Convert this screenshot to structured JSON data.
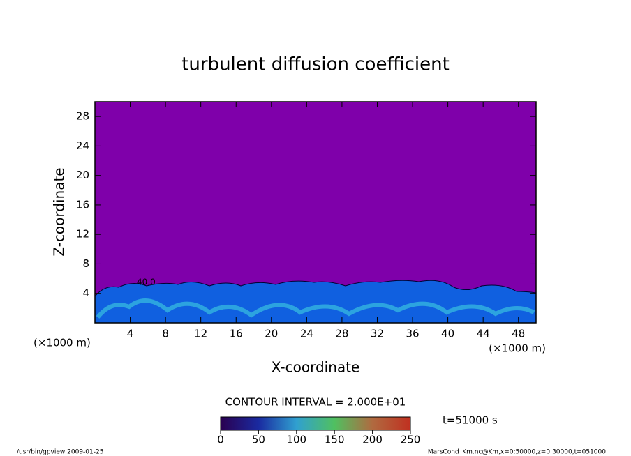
{
  "chart_data": {
    "type": "contour",
    "title": "turbulent diffusion coefficient",
    "x_label": "X-coordinate",
    "y_label": "Z-coordinate",
    "x_unit_label": "(×1000 m)",
    "y_unit_label": "(×1000 m)",
    "xlim": [
      0,
      50
    ],
    "xticks": [
      4,
      8,
      12,
      16,
      20,
      24,
      28,
      32,
      36,
      40,
      44,
      48
    ],
    "ylim": [
      0,
      30
    ],
    "yticks": [
      4,
      8,
      12,
      16,
      20,
      24,
      28
    ],
    "background_color": "#7f00aa",
    "contour_label": "40.0",
    "contour_interval_label": "CONTOUR INTERVAL = 2.000E+01",
    "time_label": "t=51000 s",
    "colorbar": {
      "lim": [
        0,
        250
      ],
      "ticks": [
        0,
        50,
        100,
        150,
        200,
        250
      ]
    },
    "footer_left": "/usr/bin/gpview  2009-01-25",
    "footer_right": "MarsCond_Km.nc@Km,x=0:50000,z=0:30000,t=051000"
  }
}
